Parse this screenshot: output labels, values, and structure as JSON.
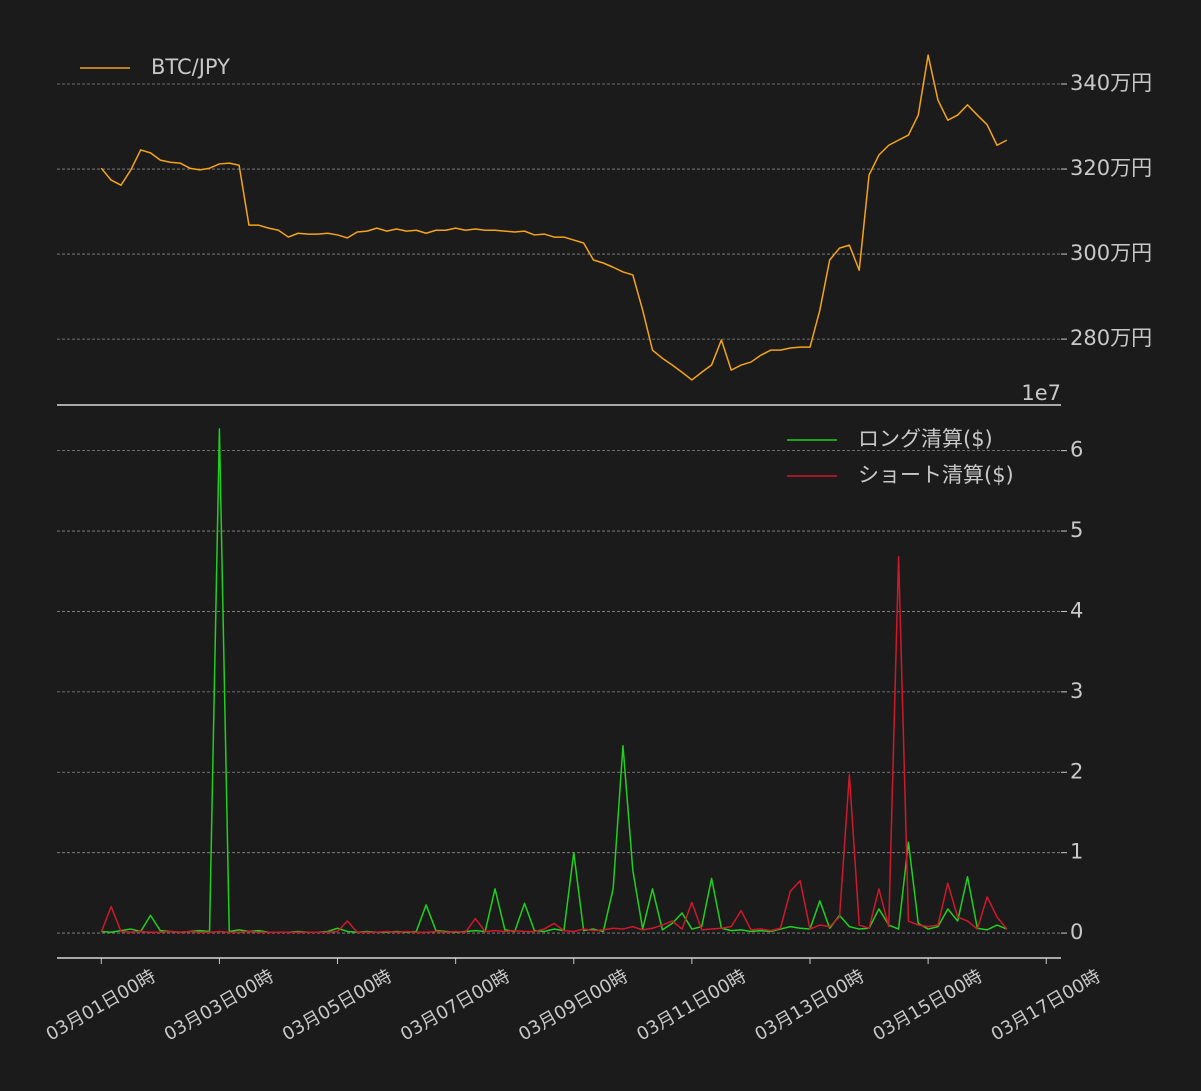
{
  "chart_data": [
    {
      "type": "line",
      "legend": "upper left",
      "grid": true,
      "x": [
        "03月01日00時",
        "03月01日04時",
        "03月01日08時",
        "03月01日12時",
        "03月01日16時",
        "03月01日20時",
        "03月02日00時",
        "03月02日04時",
        "03月02日08時",
        "03月02日12時",
        "03月02日16時",
        "03月02日20時",
        "03月03日00時",
        "03月03日04時",
        "03月03日08時",
        "03月03日12時",
        "03月03日16時",
        "03月03日20時",
        "03月04日00時",
        "03月04日04時",
        "03月04日08時",
        "03月04日12時",
        "03月04日16時",
        "03月04日20時",
        "03月05日00時",
        "03月05日04時",
        "03月05日08時",
        "03月05日12時",
        "03月05日16時",
        "03月05日20時",
        "03月06日00時",
        "03月06日04時",
        "03月06日08時",
        "03月06日12時",
        "03月06日16時",
        "03月06日20時",
        "03月07日00時",
        "03月07日04時",
        "03月07日08時",
        "03月07日12時",
        "03月07日16時",
        "03月07日20時",
        "03月08日00時",
        "03月08日04時",
        "03月08日08時",
        "03月08日12時",
        "03月08日16時",
        "03月08日20時",
        "03月09日00時",
        "03月09日04時",
        "03月09日08時",
        "03月09日12時",
        "03月09日16時",
        "03月09日20時",
        "03月10日00時",
        "03月10日04時",
        "03月10日08時",
        "03月10日12時",
        "03月10日16時",
        "03月10日20時",
        "03月11日00時",
        "03月11日04時",
        "03月11日08時",
        "03月11日12時",
        "03月11日16時",
        "03月11日20時",
        "03月12日00時",
        "03月12日04時",
        "03月12日08時",
        "03月12日12時",
        "03月12日16時",
        "03月12日20時",
        "03月13日00時",
        "03月13日04時",
        "03月13日08時",
        "03月13日12時",
        "03月13日16時",
        "03月13日20時",
        "03月14日00時",
        "03月14日04時",
        "03月14日08時",
        "03月14日12時",
        "03月14日16時",
        "03月14日20時",
        "03月15日00時",
        "03月15日04時",
        "03月15日08時",
        "03月15日12時",
        "03月15日16時",
        "03月15日20時",
        "03月16日00時",
        "03月16日04時",
        "03月16日08時"
      ],
      "xlim": [
        "02月28日06時",
        "03月17日06時"
      ],
      "ylim": [
        2645000,
        3520000
      ],
      "yticks": [
        {
          "value": 2800000,
          "label": "280万円"
        },
        {
          "value": 3000000,
          "label": "300万円"
        },
        {
          "value": 3200000,
          "label": "320万円"
        },
        {
          "value": 3400000,
          "label": "340万円"
        }
      ],
      "series": [
        {
          "name": "BTC/JPY",
          "color": "#f5a31a",
          "values": [
            3202000,
            3174000,
            3162000,
            3198000,
            3245000,
            3238000,
            3221000,
            3216000,
            3214000,
            3202000,
            3198000,
            3202000,
            3212000,
            3214000,
            3209000,
            3068000,
            3068000,
            3061000,
            3056000,
            3040000,
            3049000,
            3047000,
            3047000,
            3049000,
            3045000,
            3038000,
            3052000,
            3054000,
            3061000,
            3054000,
            3059000,
            3054000,
            3056000,
            3049000,
            3056000,
            3056000,
            3061000,
            3056000,
            3059000,
            3056000,
            3056000,
            3054000,
            3052000,
            3054000,
            3045000,
            3047000,
            3040000,
            3040000,
            3033000,
            3026000,
            2986000,
            2979000,
            2969000,
            2958000,
            2951000,
            2868000,
            2774000,
            2755000,
            2739000,
            2722000,
            2704000,
            2722000,
            2739000,
            2798000,
            2727000,
            2739000,
            2746000,
            2762000,
            2774000,
            2774000,
            2779000,
            2781000,
            2781000,
            2868000,
            2986000,
            3014000,
            3021000,
            2962000,
            3186000,
            3233000,
            3256000,
            3268000,
            3280000,
            3327000,
            3468000,
            3362000,
            3315000,
            3327000,
            3351000,
            3327000,
            3304000,
            3256000,
            3268000
          ]
        }
      ]
    },
    {
      "type": "line",
      "legend": "upper right",
      "grid": true,
      "offset_label": "1e7",
      "x": [
        "03月01日00時",
        "03月01日04時",
        "03月01日08時",
        "03月01日12時",
        "03月01日16時",
        "03月01日20時",
        "03月02日00時",
        "03月02日04時",
        "03月02日08時",
        "03月02日12時",
        "03月02日16時",
        "03月02日20時",
        "03月03日00時",
        "03月03日04時",
        "03月03日08時",
        "03月03日12時",
        "03月03日16時",
        "03月03日20時",
        "03月04日00時",
        "03月04日04時",
        "03月04日08時",
        "03月04日12時",
        "03月04日16時",
        "03月04日20時",
        "03月05日00時",
        "03月05日04時",
        "03月05日08時",
        "03月05日12時",
        "03月05日16時",
        "03月05日20時",
        "03月06日00時",
        "03月06日04時",
        "03月06日08時",
        "03月06日12時",
        "03月06日16時",
        "03月06日20時",
        "03月07日00時",
        "03月07日04時",
        "03月07日08時",
        "03月07日12時",
        "03月07日16時",
        "03月07日20時",
        "03月08日00時",
        "03月08日04時",
        "03月08日08時",
        "03月08日12時",
        "03月08日16時",
        "03月08日20時",
        "03月09日00時",
        "03月09日04時",
        "03月09日08時",
        "03月09日12時",
        "03月09日16時",
        "03月09日20時",
        "03月10日00時",
        "03月10日04時",
        "03月10日08時",
        "03月10日12時",
        "03月10日16時",
        "03月10日20時",
        "03月11日00時",
        "03月11日04時",
        "03月11日08時",
        "03月11日12時",
        "03月11日16時",
        "03月11日20時",
        "03月12日00時",
        "03月12日04時",
        "03月12日08時",
        "03月12日12時",
        "03月12日16時",
        "03月12日20時",
        "03月13日00時",
        "03月13日04時",
        "03月13日08時",
        "03月13日12時",
        "03月13日16時",
        "03月13日20時",
        "03月14日00時",
        "03月14日04時",
        "03月14日08時",
        "03月14日12時",
        "03月14日16時",
        "03月14日20時",
        "03月15日00時",
        "03月15日04時",
        "03月15日08時",
        "03月15日12時",
        "03月15日16時",
        "03月15日20時",
        "03月16日00時",
        "03月16日04時",
        "03月16日08時"
      ],
      "xlim": [
        "02月28日06時",
        "03月17日06時"
      ],
      "xticks": [
        "03月01日00時",
        "03月03日00時",
        "03月05日00時",
        "03月07日00時",
        "03月09日00時",
        "03月11日00時",
        "03月13日00時",
        "03月15日00時",
        "03月17日00時"
      ],
      "ylim": [
        -0.31,
        6.58
      ],
      "yticks": [
        0,
        1,
        2,
        3,
        4,
        5,
        6
      ],
      "series": [
        {
          "name": "ロング清算($)",
          "color": "#1fd01f",
          "values": [
            0.02,
            0.01,
            0.03,
            0.05,
            0.02,
            0.22,
            0.03,
            0.02,
            0.01,
            0.02,
            0.03,
            0.02,
            6.27,
            0.02,
            0.04,
            0.02,
            0.03,
            0.01,
            0.01,
            0.01,
            0.02,
            0.01,
            0.01,
            0.02,
            0.06,
            0.02,
            0.01,
            0.02,
            0.01,
            0.01,
            0.02,
            0.01,
            0.02,
            0.35,
            0.03,
            0.02,
            0.01,
            0.02,
            0.03,
            0.02,
            0.55,
            0.04,
            0.02,
            0.37,
            0.03,
            0.02,
            0.05,
            0.03,
            1.0,
            0.03,
            0.05,
            0.02,
            0.55,
            2.33,
            0.78,
            0.05,
            0.55,
            0.04,
            0.12,
            0.25,
            0.05,
            0.08,
            0.68,
            0.06,
            0.03,
            0.04,
            0.02,
            0.03,
            0.02,
            0.05,
            0.08,
            0.06,
            0.05,
            0.4,
            0.06,
            0.22,
            0.08,
            0.05,
            0.06,
            0.3,
            0.1,
            0.05,
            1.13,
            0.12,
            0.05,
            0.08,
            0.3,
            0.15,
            0.7,
            0.06,
            0.04,
            0.1,
            0.05
          ]
        },
        {
          "name": "ショート清算($)",
          "color": "#d0182c",
          "values": [
            0.01,
            0.33,
            0.02,
            0.01,
            0.02,
            0.01,
            0.01,
            0.02,
            0.01,
            0.02,
            0.01,
            0.01,
            0.02,
            0.01,
            0.01,
            0.02,
            0.01,
            0.01,
            0.01,
            0.01,
            0.01,
            0.01,
            0.01,
            0.01,
            0.02,
            0.15,
            0.01,
            0.01,
            0.01,
            0.02,
            0.01,
            0.02,
            0.01,
            0.01,
            0.02,
            0.01,
            0.02,
            0.01,
            0.18,
            0.02,
            0.03,
            0.02,
            0.03,
            0.02,
            0.02,
            0.05,
            0.12,
            0.03,
            0.02,
            0.05,
            0.03,
            0.04,
            0.06,
            0.05,
            0.08,
            0.04,
            0.06,
            0.1,
            0.15,
            0.05,
            0.38,
            0.04,
            0.05,
            0.06,
            0.08,
            0.28,
            0.04,
            0.05,
            0.03,
            0.06,
            0.52,
            0.65,
            0.05,
            0.1,
            0.08,
            0.2,
            1.97,
            0.1,
            0.06,
            0.55,
            0.08,
            4.68,
            0.15,
            0.1,
            0.08,
            0.1,
            0.62,
            0.2,
            0.15,
            0.05,
            0.45,
            0.2,
            0.05
          ]
        }
      ]
    }
  ]
}
